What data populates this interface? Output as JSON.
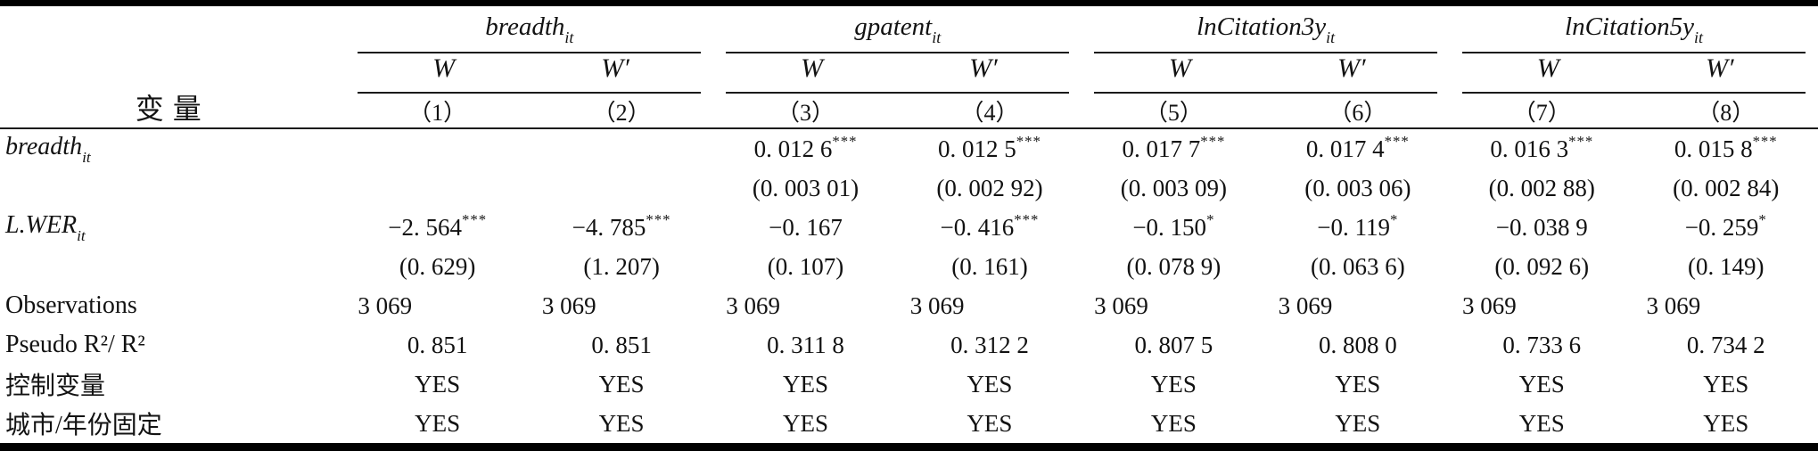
{
  "page": {
    "background": "#ffffff",
    "text_color": "#121212",
    "rule_color": "#000000"
  },
  "table": {
    "row_label_header": "变量",
    "groups": [
      {
        "name": "breadth",
        "sub": "it",
        "subcols": [
          "W",
          "W′"
        ]
      },
      {
        "name": "gpatent",
        "sub": "it",
        "subcols": [
          "W",
          "W′"
        ]
      },
      {
        "name": "lnCitation3y",
        "sub": "it",
        "subcols": [
          "W",
          "W′"
        ]
      },
      {
        "name": "lnCitation5y",
        "sub": "it",
        "subcols": [
          "W",
          "W′"
        ]
      }
    ],
    "column_numbers": [
      "（1）",
      "（2）",
      "（3）",
      "（4）",
      "（5）",
      "（6）",
      "（7）",
      "（8）"
    ],
    "rows": [
      {
        "label": {
          "text": "breadth",
          "sub": "it",
          "italic": true
        },
        "align": "center",
        "cells": [
          {
            "v": ""
          },
          {
            "v": ""
          },
          {
            "v": "0. 012 6",
            "sup": "***"
          },
          {
            "v": "0. 012 5",
            "sup": "***"
          },
          {
            "v": "0. 017 7",
            "sup": "***"
          },
          {
            "v": "0. 017 4",
            "sup": "***"
          },
          {
            "v": "0. 016 3",
            "sup": "***"
          },
          {
            "v": "0. 015 8",
            "sup": "***"
          }
        ]
      },
      {
        "label": {
          "text": "",
          "italic": false
        },
        "align": "center",
        "cells": [
          {
            "v": ""
          },
          {
            "v": ""
          },
          {
            "v": "(0. 003 01)"
          },
          {
            "v": "(0. 002 92)"
          },
          {
            "v": "(0. 003 09)"
          },
          {
            "v": "(0. 003 06)"
          },
          {
            "v": "(0. 002 88)"
          },
          {
            "v": "(0. 002 84)"
          }
        ]
      },
      {
        "label": {
          "text": "L.WER",
          "sub": "it",
          "italic": true
        },
        "align": "center",
        "cells": [
          {
            "v": "−2. 564",
            "sup": "***"
          },
          {
            "v": "−4. 785",
            "sup": "***"
          },
          {
            "v": "−0. 167"
          },
          {
            "v": "−0. 416",
            "sup": "***"
          },
          {
            "v": "−0. 150",
            "sup": "*"
          },
          {
            "v": "−0. 119",
            "sup": "*"
          },
          {
            "v": "−0. 038 9"
          },
          {
            "v": "−0. 259",
            "sup": "*"
          }
        ]
      },
      {
        "label": {
          "text": "",
          "italic": false
        },
        "align": "center",
        "cells": [
          {
            "v": "(0. 629)"
          },
          {
            "v": "(1. 207)"
          },
          {
            "v": "(0. 107)"
          },
          {
            "v": "(0. 161)"
          },
          {
            "v": "(0. 078 9)"
          },
          {
            "v": "(0. 063 6)"
          },
          {
            "v": "(0. 092 6)"
          },
          {
            "v": "(0. 149)"
          }
        ]
      },
      {
        "label": {
          "text": "Observations",
          "italic": false
        },
        "align": "left",
        "cells": [
          {
            "v": "3 069"
          },
          {
            "v": "3 069"
          },
          {
            "v": "3 069"
          },
          {
            "v": "3 069"
          },
          {
            "v": "3 069"
          },
          {
            "v": "3 069"
          },
          {
            "v": "3 069"
          },
          {
            "v": "3 069"
          }
        ]
      },
      {
        "label": {
          "text": "Pseudo R²/ R²",
          "italic": false
        },
        "align": "center",
        "cells": [
          {
            "v": "0. 851"
          },
          {
            "v": "0. 851"
          },
          {
            "v": "0. 311 8"
          },
          {
            "v": "0. 312 2"
          },
          {
            "v": "0. 807 5"
          },
          {
            "v": "0. 808 0"
          },
          {
            "v": "0. 733 6"
          },
          {
            "v": "0. 734 2"
          }
        ]
      },
      {
        "label": {
          "text": "控制变量",
          "italic": false
        },
        "align": "center",
        "cells": [
          {
            "v": "YES"
          },
          {
            "v": "YES"
          },
          {
            "v": "YES"
          },
          {
            "v": "YES"
          },
          {
            "v": "YES"
          },
          {
            "v": "YES"
          },
          {
            "v": "YES"
          },
          {
            "v": "YES"
          }
        ]
      },
      {
        "label": {
          "text": "城市/年份固定",
          "italic": false
        },
        "align": "center",
        "cells": [
          {
            "v": "YES"
          },
          {
            "v": "YES"
          },
          {
            "v": "YES"
          },
          {
            "v": "YES"
          },
          {
            "v": "YES"
          },
          {
            "v": "YES"
          },
          {
            "v": "YES"
          },
          {
            "v": "YES"
          }
        ]
      }
    ]
  }
}
